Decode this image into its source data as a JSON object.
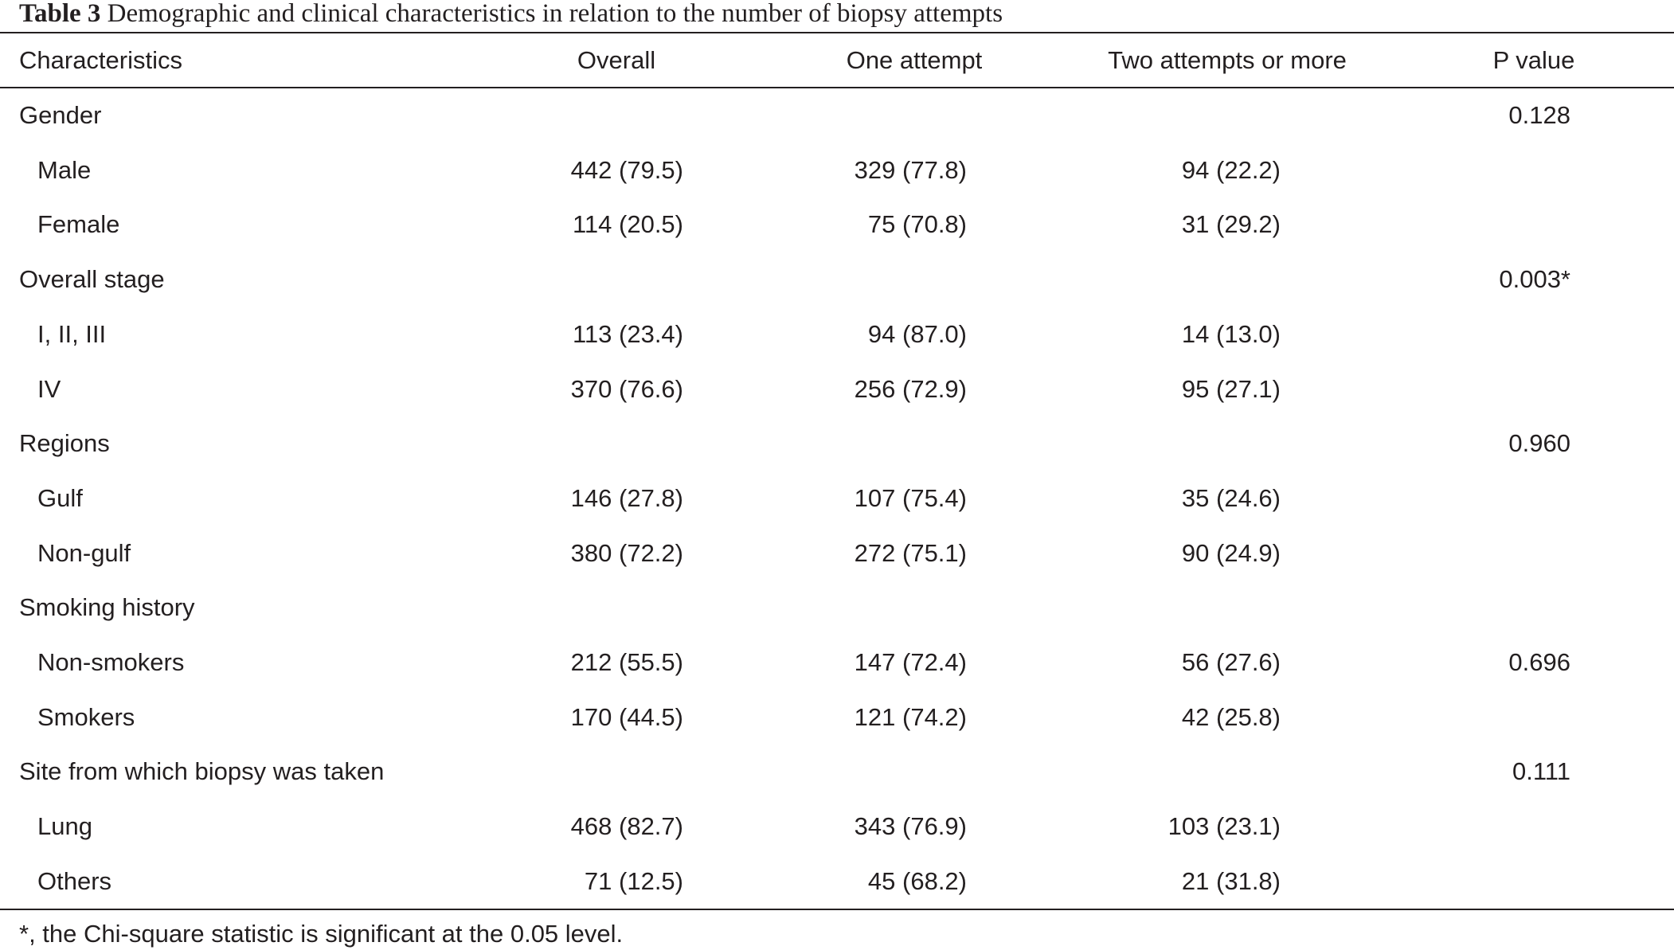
{
  "caption": {
    "label": "Table 3",
    "text": "Demographic and clinical characteristics in relation to the number of biopsy attempts"
  },
  "columns": [
    "Characteristics",
    "Overall",
    "One attempt",
    "Two attempts or more",
    "P value"
  ],
  "rows": [
    {
      "label": "Gender",
      "overall": "",
      "one": "",
      "two": "",
      "p": "0.128"
    },
    {
      "label": "Male",
      "overall": "442 (79.5)",
      "one": "329 (77.8)",
      "two": "94 (22.2)",
      "p": ""
    },
    {
      "label": "Female",
      "overall": "114 (20.5)",
      "one": "75 (70.8)",
      "two": "31 (29.2)",
      "p": ""
    },
    {
      "label": "Overall stage",
      "overall": "",
      "one": "",
      "two": "",
      "p": "0.003*"
    },
    {
      "label": "I, II, III",
      "overall": "113 (23.4)",
      "one": "94 (87.0)",
      "two": "14 (13.0)",
      "p": ""
    },
    {
      "label": "IV",
      "overall": "370 (76.6)",
      "one": "256 (72.9)",
      "two": "95 (27.1)",
      "p": ""
    },
    {
      "label": "Regions",
      "overall": "",
      "one": "",
      "two": "",
      "p": "0.960"
    },
    {
      "label": "Gulf",
      "overall": "146 (27.8)",
      "one": "107 (75.4)",
      "two": "35 (24.6)",
      "p": ""
    },
    {
      "label": "Non-gulf",
      "overall": "380 (72.2)",
      "one": "272 (75.1)",
      "two": "90 (24.9)",
      "p": ""
    },
    {
      "label": "Smoking history",
      "overall": "",
      "one": "",
      "two": "",
      "p": ""
    },
    {
      "label": "Non-smokers",
      "overall": "212 (55.5)",
      "one": "147 (72.4)",
      "two": "56 (27.6)",
      "p": "0.696"
    },
    {
      "label": "Smokers",
      "overall": "170 (44.5)",
      "one": "121 (74.2)",
      "two": "42 (25.8)",
      "p": ""
    },
    {
      "label": "Site from which biopsy was taken",
      "overall": "",
      "one": "",
      "two": "",
      "p": "0.111"
    },
    {
      "label": "Lung",
      "overall": "468 (82.7)",
      "one": "343 (76.9)",
      "two": "103 (23.1)",
      "p": ""
    },
    {
      "label": "Others",
      "overall": "71 (12.5)",
      "one": "45 (68.2)",
      "two": "21 (31.8)",
      "p": ""
    }
  ],
  "footnote": "*, the Chi-square statistic is significant at the 0.05 level."
}
